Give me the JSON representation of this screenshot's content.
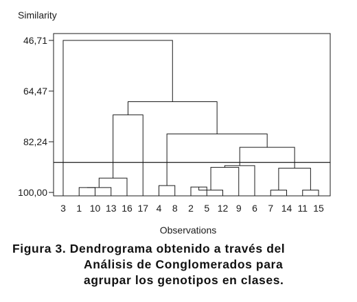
{
  "chart_data": {
    "type": "dendrogram",
    "ylabel": "Similarity",
    "xlabel": "Observations",
    "y_ticks": [
      "46,71",
      "64,47",
      "82,24",
      "100,00"
    ],
    "y_tick_values": [
      46.71,
      64.47,
      82.24,
      100.0
    ],
    "ylim": [
      100.0,
      46.71
    ],
    "leaves": [
      "3",
      "1",
      "10",
      "13",
      "16",
      "17",
      "4",
      "8",
      "2",
      "5",
      "12",
      "9",
      "6",
      "7",
      "14",
      "11",
      "15"
    ],
    "cutoff_similarity": 89.5,
    "merges": [
      {
        "id": "A",
        "left": "1",
        "right": "10",
        "similarity": 98.3
      },
      {
        "id": "B",
        "left": "A",
        "right": "13",
        "similarity": 98.3
      },
      {
        "id": "C",
        "left": "B",
        "right": "16",
        "similarity": 95.0
      },
      {
        "id": "D",
        "left": "C",
        "right": "17",
        "similarity": 72.8
      },
      {
        "id": "E",
        "left": "4",
        "right": "8",
        "similarity": 97.6
      },
      {
        "id": "F",
        "left": "2",
        "right": "5",
        "similarity": 98.1
      },
      {
        "id": "G",
        "left": "F",
        "right": "12",
        "similarity": 99.2
      },
      {
        "id": "H",
        "left": "G",
        "right": "9",
        "similarity": 91.2
      },
      {
        "id": "I",
        "left": "H",
        "right": "6",
        "similarity": 90.6
      },
      {
        "id": "J",
        "left": "7",
        "right": "14",
        "similarity": 99.2
      },
      {
        "id": "K",
        "left": "11",
        "right": "15",
        "similarity": 99.2
      },
      {
        "id": "L",
        "left": "J",
        "right": "K",
        "similarity": 91.5
      },
      {
        "id": "M",
        "left": "I",
        "right": "L",
        "similarity": 84.2
      },
      {
        "id": "N",
        "left": "E",
        "right": "M",
        "similarity": 79.5
      },
      {
        "id": "O",
        "left": "D",
        "right": "N",
        "similarity": 68.2
      },
      {
        "id": "P",
        "left": "3",
        "right": "O",
        "similarity": 46.71
      }
    ]
  },
  "caption": {
    "line1": "Figura 3. Dendrograma obtenido a través del",
    "line2": "Análisis de Conglomerados para",
    "line3": "agrupar los genotipos en clases."
  }
}
